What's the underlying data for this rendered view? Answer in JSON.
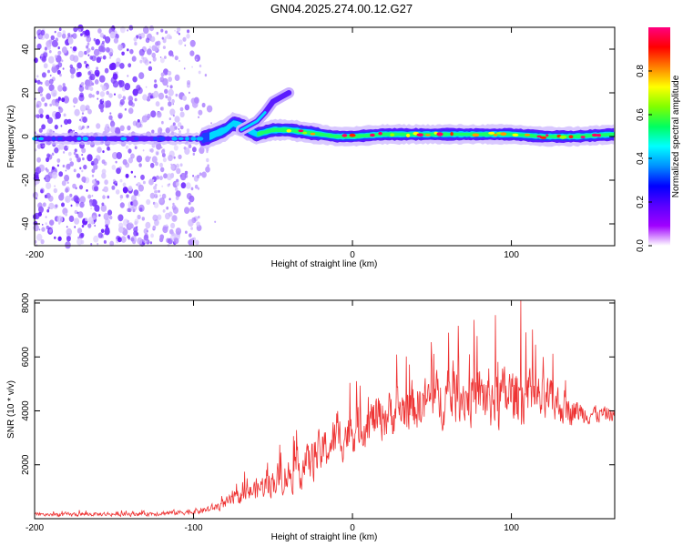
{
  "title": "GN04.2025.274.00.12.G27",
  "colors": {
    "snr_line": "#ee3333",
    "frame": "#000000",
    "colormap": [
      "#ffffff",
      "#a000ff",
      "#5a00ff",
      "#0000ff",
      "#0090ff",
      "#00ffff",
      "#00ff60",
      "#80ff00",
      "#ffff00",
      "#ff8000",
      "#ff0000",
      "#ff0080"
    ]
  },
  "chart_data": [
    {
      "type": "heatmap",
      "name": "spectrogram",
      "xlabel": "Height of straight line (km)",
      "ylabel": "Frequency (Hz)",
      "xlim": [
        -200,
        165
      ],
      "ylim": [
        -50,
        50
      ],
      "x_ticks": [
        "-200",
        "-100",
        "0",
        "100"
      ],
      "x_tick_values": [
        -200,
        -100,
        0,
        100
      ],
      "y_ticks": [
        "40",
        "20",
        "0",
        "-20",
        "-40"
      ],
      "y_tick_values": [
        40,
        20,
        0,
        -20,
        -40
      ],
      "colorbar": {
        "label": "Normalized spectral amplitude",
        "range": [
          0,
          1
        ],
        "ticks": [
          "0.0",
          "0.2",
          "0.4",
          "0.6",
          "0.8"
        ],
        "tick_values": [
          0.0,
          0.2,
          0.4,
          0.6,
          0.8
        ]
      },
      "track_center_hz": [
        {
          "x": -200,
          "y": -1
        },
        {
          "x": -150,
          "y": -1
        },
        {
          "x": -100,
          "y": -1
        },
        {
          "x": -95,
          "y": -1
        },
        {
          "x": -90,
          "y": 0
        },
        {
          "x": -80,
          "y": 3
        },
        {
          "x": -75,
          "y": 6
        },
        {
          "x": -70,
          "y": 5
        },
        {
          "x": -65,
          "y": 3
        },
        {
          "x": -60,
          "y": 1
        },
        {
          "x": -50,
          "y": 3
        },
        {
          "x": -40,
          "y": 3
        },
        {
          "x": -30,
          "y": 2
        },
        {
          "x": -20,
          "y": 1
        },
        {
          "x": -10,
          "y": 0
        },
        {
          "x": 0,
          "y": 0
        },
        {
          "x": 20,
          "y": 1
        },
        {
          "x": 40,
          "y": 1
        },
        {
          "x": 60,
          "y": 1
        },
        {
          "x": 80,
          "y": 1
        },
        {
          "x": 100,
          "y": 1
        },
        {
          "x": 120,
          "y": 0
        },
        {
          "x": 140,
          "y": 0
        },
        {
          "x": 165,
          "y": 1
        }
      ],
      "secondary_branch_hz": [
        {
          "x": -70,
          "y": 3
        },
        {
          "x": -60,
          "y": 7
        },
        {
          "x": -55,
          "y": 11
        },
        {
          "x": -50,
          "y": 16
        },
        {
          "x": -45,
          "y": 18
        },
        {
          "x": -40,
          "y": 20
        }
      ]
    },
    {
      "type": "line",
      "name": "snr",
      "xlabel": "Height of straight line (km)",
      "ylabel": "SNR (10 * v/v)",
      "xlim": [
        -200,
        165
      ],
      "ylim": [
        0,
        8100
      ],
      "x_ticks": [
        "-200",
        "-100",
        "0",
        "100"
      ],
      "x_tick_values": [
        -200,
        -100,
        0,
        100
      ],
      "y_ticks": [
        "8000",
        "6000",
        "4000",
        "2000"
      ],
      "y_tick_values": [
        8000,
        6000,
        4000,
        2000
      ],
      "series": [
        {
          "name": "SNR",
          "envelope": {
            "x": [
              -200,
              -150,
              -120,
              -100,
              -90,
              -80,
              -70,
              -60,
              -50,
              -40,
              -30,
              -20,
              -10,
              0,
              10,
              20,
              30,
              40,
              50,
              60,
              70,
              80,
              90,
              100,
              110,
              120,
              130,
              140,
              150,
              165
            ],
            "mean": [
              150,
              170,
              200,
              260,
              350,
              550,
              850,
              1100,
              1400,
              1650,
              1950,
              2450,
              2900,
              3300,
              3600,
              3850,
              4050,
              4200,
              4400,
              4500,
              4600,
              4550,
              4500,
              4550,
              4500,
              4400,
              4200,
              4000,
              3900,
              3850
            ],
            "spread": [
              70,
              80,
              90,
              110,
              140,
              220,
              320,
              420,
              560,
              680,
              760,
              820,
              860,
              880,
              880,
              900,
              940,
              980,
              1000,
              1050,
              1100,
              1100,
              1150,
              1150,
              1100,
              950,
              750,
              500,
              380,
              260
            ]
          },
          "peaks": [
            {
              "x": -45,
              "y": 2450
            },
            {
              "x": -10,
              "y": 3900
            },
            {
              "x": 50,
              "y": 5900
            },
            {
              "x": 90,
              "y": 7550
            },
            {
              "x": 106,
              "y": 8100
            },
            {
              "x": 120,
              "y": 6000
            }
          ]
        }
      ]
    }
  ]
}
